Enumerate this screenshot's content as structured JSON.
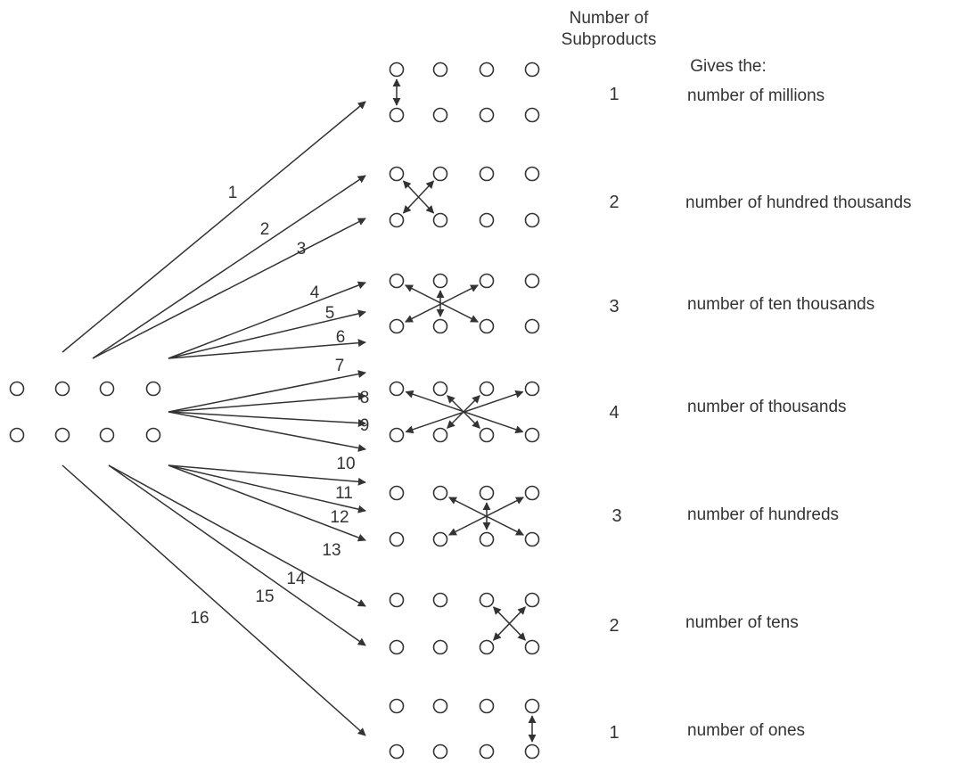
{
  "header": {
    "count_line1": "Number of",
    "count_line2": "Subproducts",
    "gives": "Gives the:"
  },
  "arrow_labels": [
    "1",
    "2",
    "3",
    "4",
    "5",
    "6",
    "7",
    "8",
    "9",
    "10",
    "11",
    "12",
    "13",
    "14",
    "15",
    "16"
  ],
  "rows": [
    {
      "count": "1",
      "description": "number of millions"
    },
    {
      "count": "2",
      "description": "number of hundred thousands"
    },
    {
      "count": "3",
      "description": "number of ten thousands"
    },
    {
      "count": "4",
      "description": "number of thousands"
    },
    {
      "count": "3",
      "description": "number of hundreds"
    },
    {
      "count": "2",
      "description": "number of tens"
    },
    {
      "count": "1",
      "description": "number of ones"
    }
  ]
}
